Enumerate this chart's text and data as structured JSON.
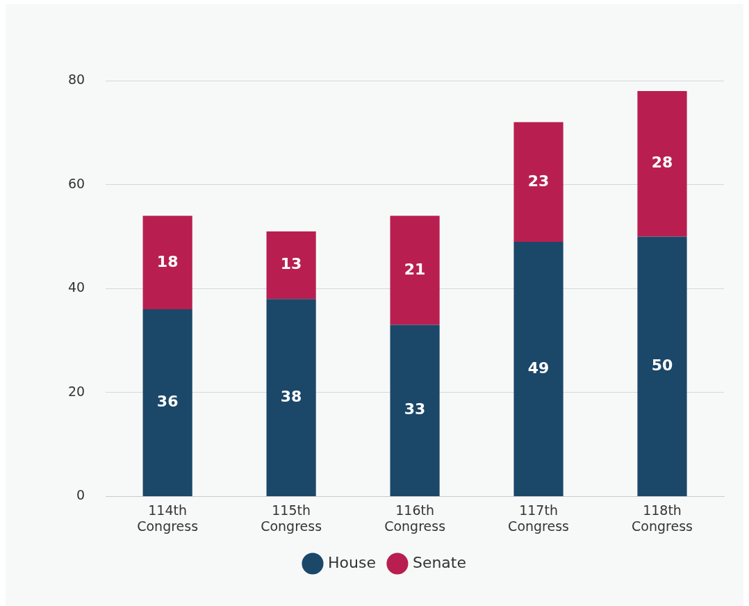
{
  "chart_data": {
    "type": "bar",
    "stacked": true,
    "categories": [
      "114th Congress",
      "115th Congress",
      "116th Congress",
      "117th Congress",
      "118th Congress"
    ],
    "series": [
      {
        "name": "House",
        "color": "#1b4769",
        "values": [
          36,
          38,
          33,
          49,
          50
        ]
      },
      {
        "name": "Senate",
        "color": "#b81f50",
        "values": [
          18,
          13,
          21,
          23,
          28
        ]
      }
    ],
    "ylim": [
      0,
      80
    ],
    "yticks": [
      0,
      20,
      40,
      60,
      80
    ],
    "grid": "y",
    "legend": "bottom",
    "data_labels": true
  }
}
